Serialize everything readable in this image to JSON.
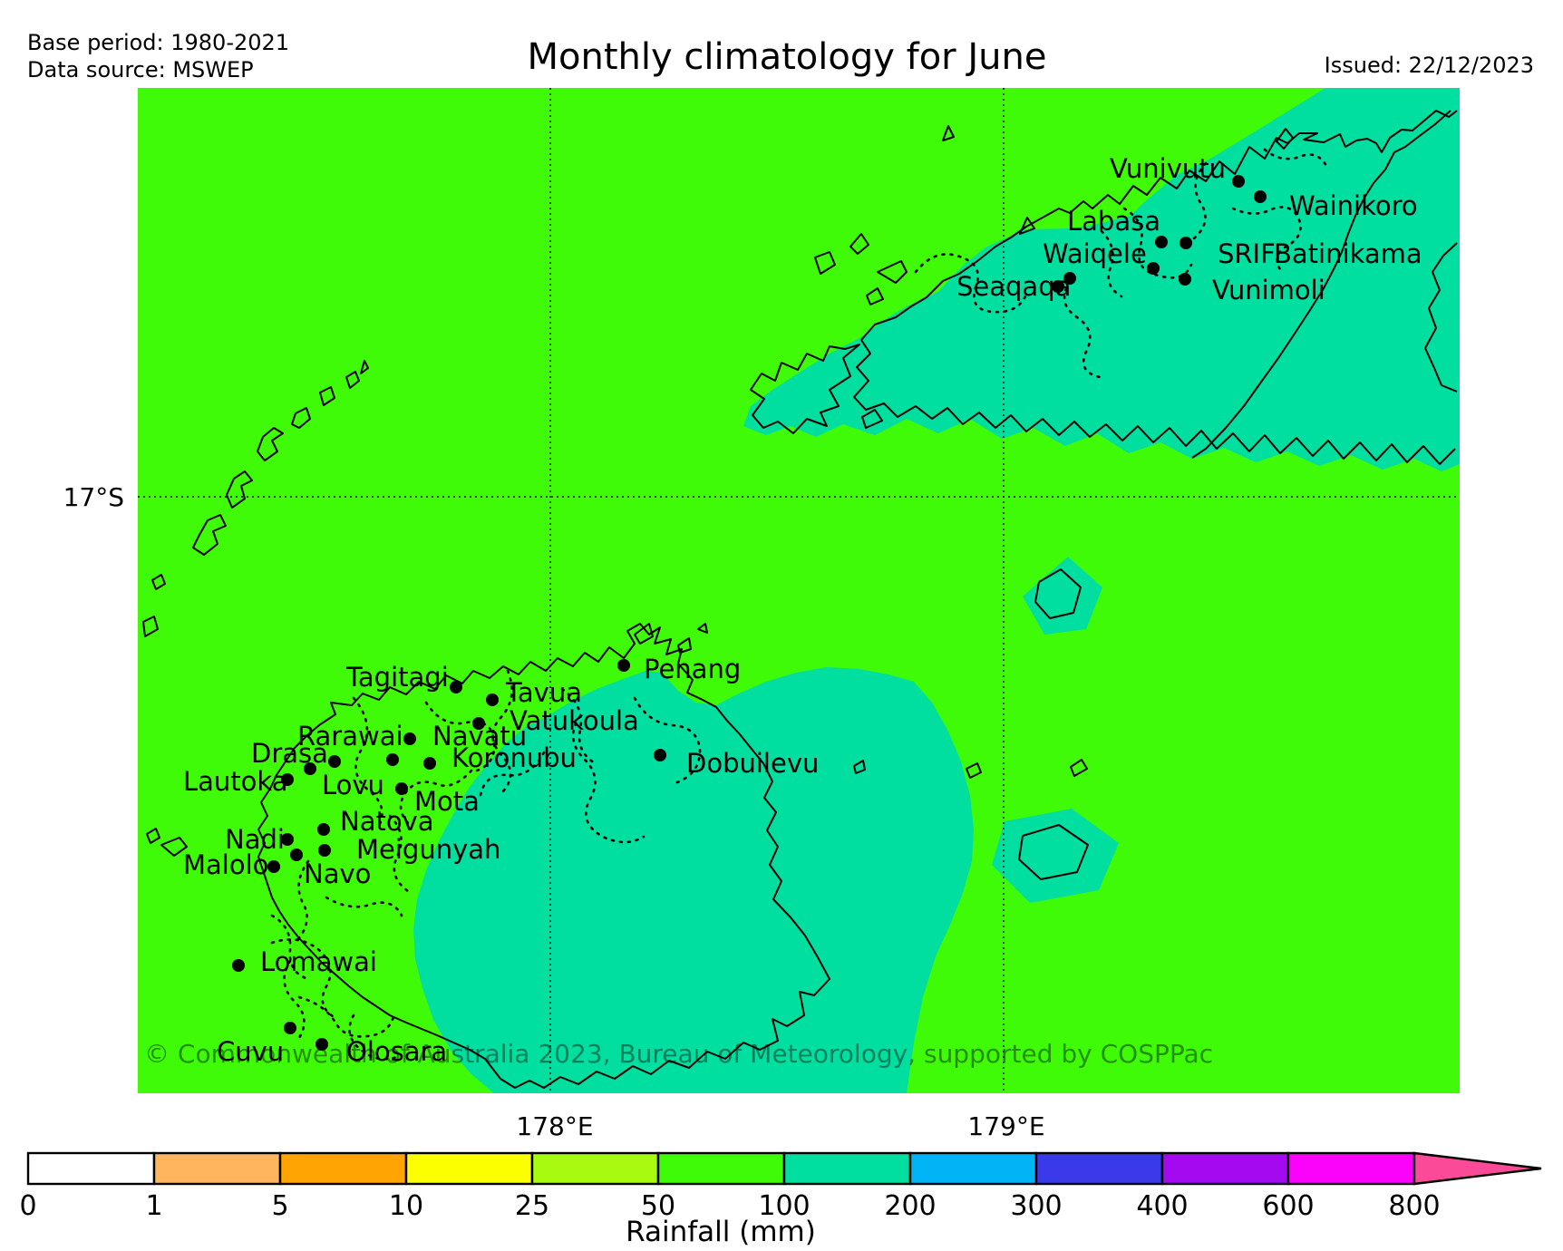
{
  "header": {
    "base_period": "Base period: 1980-2021",
    "data_source": "Data source: MSWEP",
    "title": "Monthly climatology for June",
    "issued": "Issued: 22/12/2023"
  },
  "map": {
    "axis": {
      "lat": "17°S",
      "lon_left": "178°E",
      "lon_right": "179°E"
    },
    "copyright": "© Commonwealth of Australia 2023, Bureau of Meteorology, supported by COSPPac",
    "colors": {
      "rain_50_100": "#3ffb07",
      "rain_100_200": "#00dfa0"
    },
    "stations": [
      {
        "name": "Vunivutu",
        "label": [
          1352,
          196
        ],
        "anchor": "end",
        "dot": [
          1366,
          200
        ]
      },
      {
        "name": "Wainikoro",
        "label": [
          1422,
          237
        ],
        "anchor": "start",
        "dot": [
          1390,
          217
        ]
      },
      {
        "name": "Labasa",
        "label": [
          1177,
          254
        ],
        "anchor": "start",
        "dot": [
          1281,
          267
        ]
      },
      {
        "name": "Waiqele",
        "label": [
          1150,
          290
        ],
        "anchor": "start",
        "dot": [
          1180,
          307
        ]
      },
      {
        "name": "SRIF",
        "label": [
          1343,
          290
        ],
        "anchor": "start",
        "dot": [
          1308,
          268
        ]
      },
      {
        "name": "Batinikama",
        "label": [
          1405,
          290
        ],
        "anchor": "start",
        "dot": [
          1272,
          296
        ]
      },
      {
        "name": "Seaqaqa",
        "label": [
          1055,
          326
        ],
        "anchor": "start",
        "dot": [
          1167,
          316
        ]
      },
      {
        "name": "Vunimoli",
        "label": [
          1337,
          330
        ],
        "anchor": "start",
        "dot": [
          1307,
          308
        ]
      },
      {
        "name": "Penang",
        "label": [
          710,
          748
        ],
        "anchor": "start",
        "dot": [
          688,
          734
        ]
      },
      {
        "name": "Tagitagi",
        "label": [
          382,
          757
        ],
        "anchor": "start",
        "dot": [
          503,
          758
        ]
      },
      {
        "name": "Tavua",
        "label": [
          558,
          774
        ],
        "anchor": "start",
        "dot": [
          543,
          772
        ]
      },
      {
        "name": "Vatukoula",
        "label": [
          562,
          805
        ],
        "anchor": "start",
        "dot": [
          528,
          798
        ]
      },
      {
        "name": "Rarawai",
        "label": [
          328,
          822
        ],
        "anchor": "start",
        "dot": [
          452,
          815
        ]
      },
      {
        "name": "Navatu",
        "label": [
          477,
          822
        ],
        "anchor": "start",
        "dot": [
          433,
          838
        ]
      },
      {
        "name": "Koronubu",
        "label": [
          498,
          846
        ],
        "anchor": "start",
        "dot": [
          474,
          842
        ]
      },
      {
        "name": "Drasa",
        "label": [
          277,
          841
        ],
        "anchor": "start",
        "dot": [
          342,
          848
        ]
      },
      {
        "name": "Lautoka",
        "label": [
          202,
          872
        ],
        "anchor": "start",
        "dot": [
          317,
          860
        ]
      },
      {
        "name": "Lovu",
        "label": [
          355,
          876
        ],
        "anchor": "start",
        "dot": [
          369,
          840
        ]
      },
      {
        "name": "Mota",
        "label": [
          457,
          894
        ],
        "anchor": "start",
        "dot": [
          443,
          870
        ]
      },
      {
        "name": "Natova",
        "label": [
          375,
          916
        ],
        "anchor": "start",
        "dot": [
          357,
          915
        ]
      },
      {
        "name": "Nadi",
        "label": [
          248,
          936
        ],
        "anchor": "start",
        "dot": [
          317,
          926
        ]
      },
      {
        "name": "Meigunyah",
        "label": [
          393,
          947
        ],
        "anchor": "start",
        "dot": [
          358,
          938
        ]
      },
      {
        "name": "Malolo",
        "label": [
          202,
          964
        ],
        "anchor": "start",
        "dot": [
          302,
          956
        ]
      },
      {
        "name": "Navo",
        "label": [
          335,
          974
        ],
        "anchor": "start",
        "dot": [
          327,
          943
        ]
      },
      {
        "name": "Lomawai",
        "label": [
          287,
          1071
        ],
        "anchor": "start",
        "dot": [
          263,
          1065
        ]
      },
      {
        "name": "Cuvu",
        "label": [
          239,
          1170
        ],
        "anchor": "start",
        "dot": [
          320,
          1134
        ]
      },
      {
        "name": "Olosara",
        "label": [
          382,
          1170
        ],
        "anchor": "start",
        "dot": [
          355,
          1152
        ]
      },
      {
        "name": "Dobuilevu",
        "label": [
          757,
          852
        ],
        "anchor": "start",
        "dot": [
          728,
          833
        ]
      }
    ]
  },
  "colorbar": {
    "label": "Rainfall (mm)",
    "ticks": [
      "0",
      "1",
      "5",
      "10",
      "25",
      "50",
      "100",
      "200",
      "300",
      "400",
      "600",
      "800"
    ],
    "segment_colors": [
      "#ffffff",
      "#ffb55e",
      "#ffa402",
      "#fcff00",
      "#a8fb0e",
      "#3ffb07",
      "#00dfa0",
      "#00b4f5",
      "#3a3aea",
      "#a30af0",
      "#fb02fb"
    ],
    "arrow_color": "#fb4b98"
  }
}
